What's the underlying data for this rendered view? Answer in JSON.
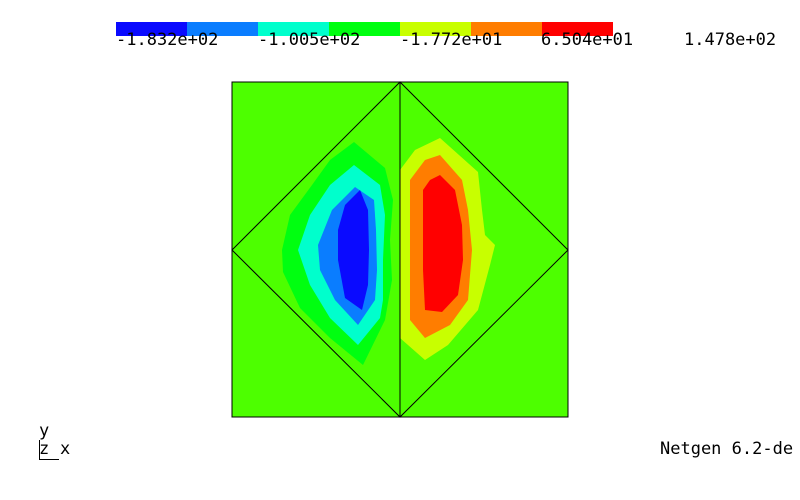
{
  "colorbar": {
    "colors": [
      "#0a0aff",
      "#0a7dff",
      "#00ffcc",
      "#00ff10",
      "#c8ff00",
      "#ff7d00",
      "#ff0000",
      "#ffffff"
    ],
    "labels": [
      "-1.832e+02",
      "-1.005e+02",
      "-1.772e+01",
      "6.504e+01",
      "1.478e+02"
    ]
  },
  "field_colors": {
    "background": "#4dff00",
    "mesh_edges": "#000000"
  },
  "axes": {
    "y": "y",
    "z": "z",
    "x": "x"
  },
  "version": "Netgen 6.2-de"
}
